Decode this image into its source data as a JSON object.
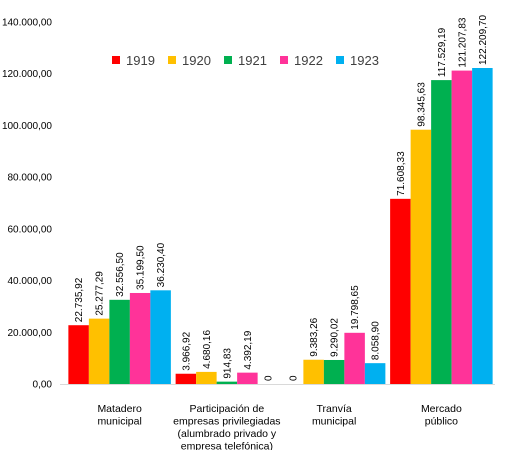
{
  "chart_data": {
    "type": "bar",
    "categories": [
      [
        "Matadero",
        "municipal"
      ],
      [
        "Participación de",
        "empresas privilegiadas",
        "(alumbrado privado y",
        "empresa telefónica)"
      ],
      [
        "Tranvía",
        "municipal"
      ],
      [
        "Mercado",
        "público"
      ]
    ],
    "series": [
      {
        "name": "1919",
        "color": "#ff0000",
        "values": [
          22735.92,
          3966.92,
          0,
          71608.33
        ],
        "labels": [
          "22.735,92",
          "3.966,92",
          "0",
          "71.608,33"
        ]
      },
      {
        "name": "1920",
        "color": "#ffc000",
        "values": [
          25277.29,
          4680.16,
          9383.26,
          98345.63
        ],
        "labels": [
          "25.277,29",
          "4.680,16",
          "9.383,26",
          "98.345,63"
        ]
      },
      {
        "name": "1921",
        "color": "#00b050",
        "values": [
          32556.5,
          914.83,
          9290.02,
          117529.19
        ],
        "labels": [
          "32.556,50",
          "914,83",
          "9.290,02",
          "117.529,19"
        ]
      },
      {
        "name": "1922",
        "color": "#ff3399",
        "values": [
          35199.5,
          4392.19,
          19798.65,
          121207.83
        ],
        "labels": [
          "35.199,50",
          "4.392,19",
          "19.798,65",
          "121.207,83"
        ]
      },
      {
        "name": "1923",
        "color": "#00b0f0",
        "values": [
          36230.4,
          0,
          8058.9,
          122209.7
        ],
        "labels": [
          "36.230,40",
          "0",
          "8.058,90",
          "122.209,70"
        ]
      }
    ],
    "ylim": [
      0,
      140000
    ],
    "yticks": [
      0,
      20000,
      40000,
      60000,
      80000,
      100000,
      120000,
      140000
    ],
    "ytick_labels": [
      "0,00",
      "20.000,00",
      "40.000,00",
      "60.000,00",
      "80.000,00",
      "100.000,00",
      "120.000,00",
      "140.000,00"
    ],
    "legend_position": "top-center",
    "grid": false
  }
}
